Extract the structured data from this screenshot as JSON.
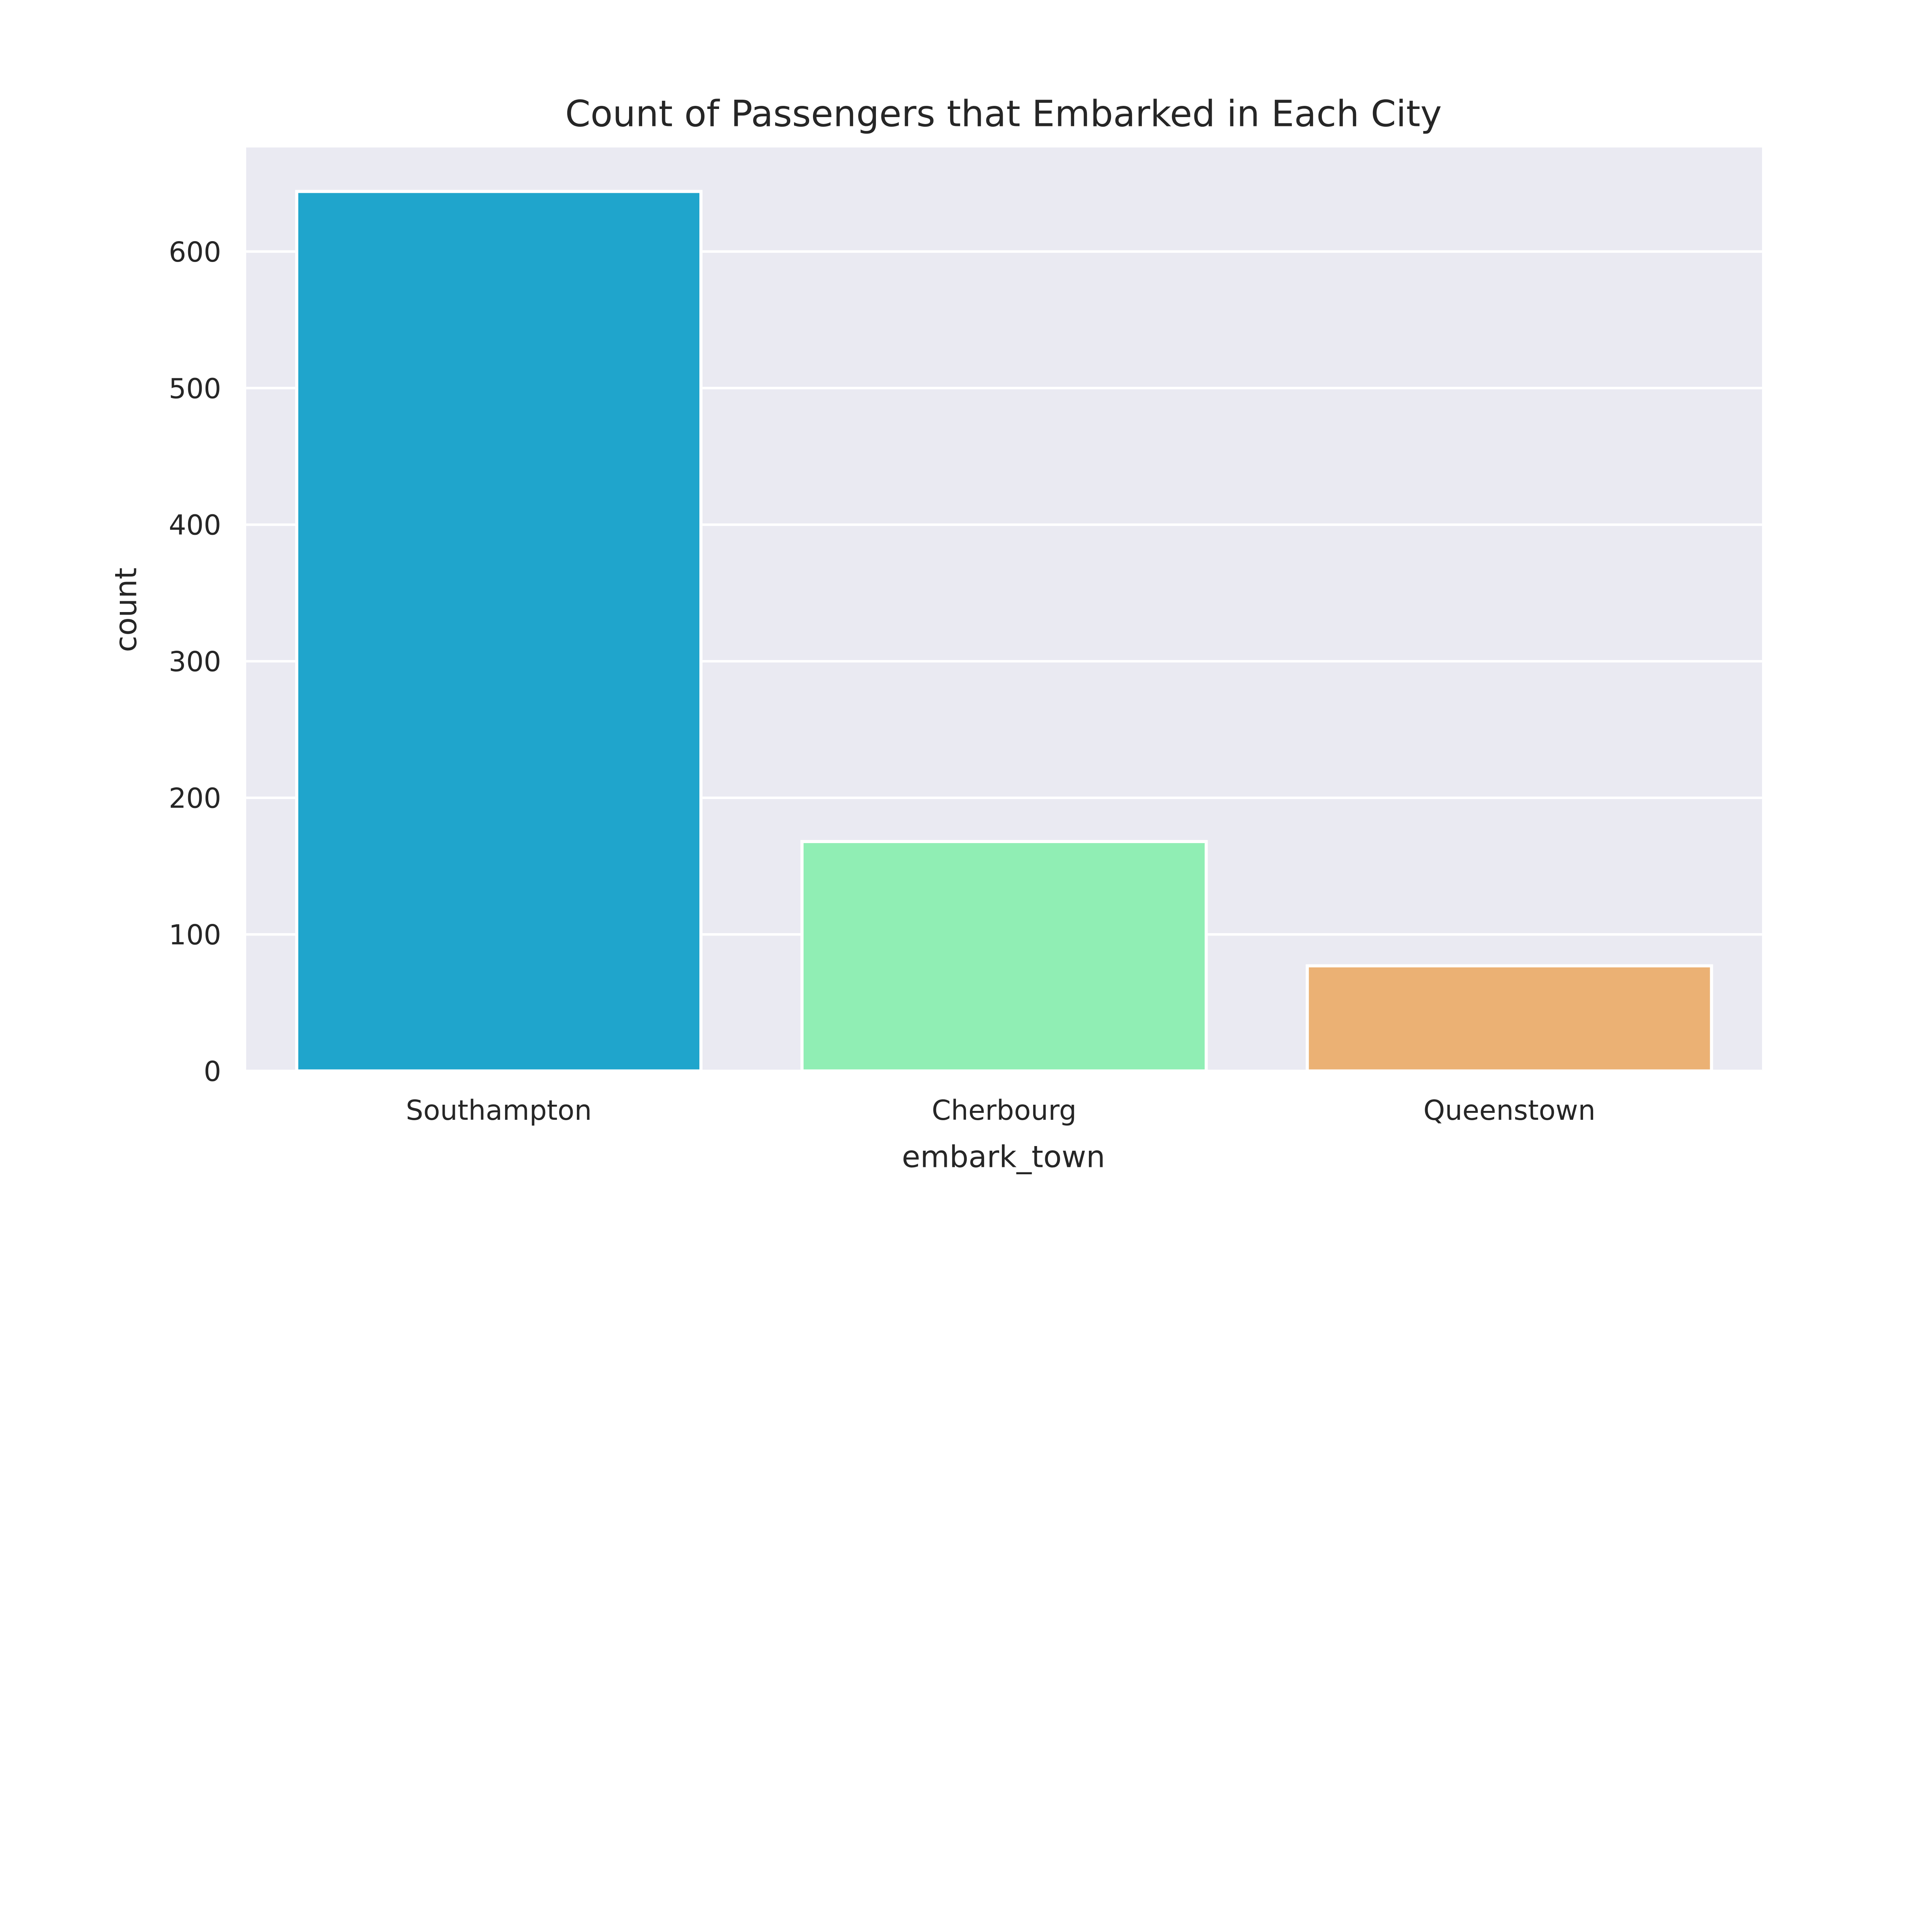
{
  "chart_data": {
    "type": "bar",
    "title": "Count of Passengers that Embarked in Each City",
    "xlabel": "embark_town",
    "ylabel": "count",
    "categories": [
      "Southampton",
      "Cherbourg",
      "Queenstown"
    ],
    "values": [
      644,
      168,
      77
    ],
    "colors": [
      "#1fa5cc",
      "#90eeb4",
      "#ebb174"
    ],
    "ylim": [
      0,
      676.2
    ],
    "yticks": [
      0,
      100,
      200,
      300,
      400,
      500,
      600
    ],
    "grid": true,
    "background": "#eaeaf2",
    "legend": "none"
  }
}
